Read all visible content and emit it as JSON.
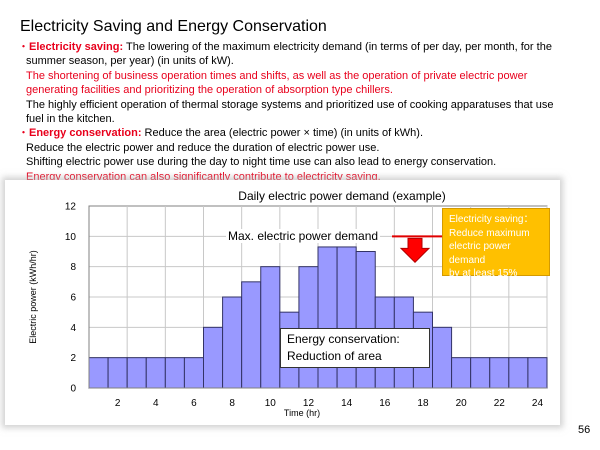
{
  "slide": {
    "title": "Electricity Saving and Energy Conservation",
    "page_number": "56"
  },
  "body": {
    "bullet1": {
      "bullet": "・",
      "label": "Electricity saving:",
      "text_l1": " The lowering of the maximum electricity demand (in terms of per day, per month, for the",
      "text_l2": "summer season, per year) (in units of kW)."
    },
    "red1_l1": "The shortening of business operation times and shifts, as well as the operation of private electric power",
    "red1_l2": "generating facilities and prioritizing the operation of absorption type chillers.",
    "plain1_l1": "The highly efficient operation of thermal storage systems and prioritized use of cooking apparatuses that use",
    "plain1_l2": "fuel in the kitchen.",
    "bullet2": {
      "bullet": "・",
      "label": "Energy conservation:",
      "text": " Reduce the area (electric power × time) (in units of kWh)."
    },
    "plain2": "Reduce the electric power and reduce the duration of electric power use.",
    "plain3": "Shifting electric power use during the day to night time use can also lead to energy conservation.",
    "red2": "Energy conservation can also significantly contribute to electricity saving."
  },
  "annotations": {
    "max_demand": "Max. electric power demand",
    "callout_l1": "Electricity saving：",
    "callout_l2": "Reduce maximum",
    "callout_l3": "electric power demand",
    "callout_l4": "by at least 15%",
    "energy_l1": "Energy conservation:",
    "energy_l2": "Reduction of area"
  },
  "chart_data": {
    "type": "bar",
    "title": "Daily electric power demand (example)",
    "xlabel": "Time (hr)",
    "ylabel": "Electric power (kWh/hr)",
    "ylim": [
      0,
      12
    ],
    "y_ticks": [
      0,
      2,
      4,
      6,
      8,
      10,
      12
    ],
    "x_ticks": [
      2,
      4,
      6,
      8,
      10,
      12,
      14,
      16,
      18,
      20,
      22,
      24
    ],
    "hours": [
      1,
      2,
      3,
      4,
      5,
      6,
      7,
      8,
      9,
      10,
      11,
      12,
      13,
      14,
      15,
      16,
      17,
      18,
      19,
      20,
      21,
      22,
      23,
      24
    ],
    "values": [
      2,
      2,
      2,
      2,
      2,
      2,
      4,
      6,
      7,
      8,
      5,
      8,
      9.3,
      9.3,
      9,
      6,
      6,
      5,
      4,
      2,
      2,
      2,
      2,
      2
    ],
    "max_demand_line": 10,
    "grid": true,
    "colors": {
      "bar_fill": "#9999ff",
      "bar_stroke": "#333366",
      "max_line": "#e00000",
      "arrow": "#ff0000",
      "callout_fill": "#ffc000"
    }
  }
}
